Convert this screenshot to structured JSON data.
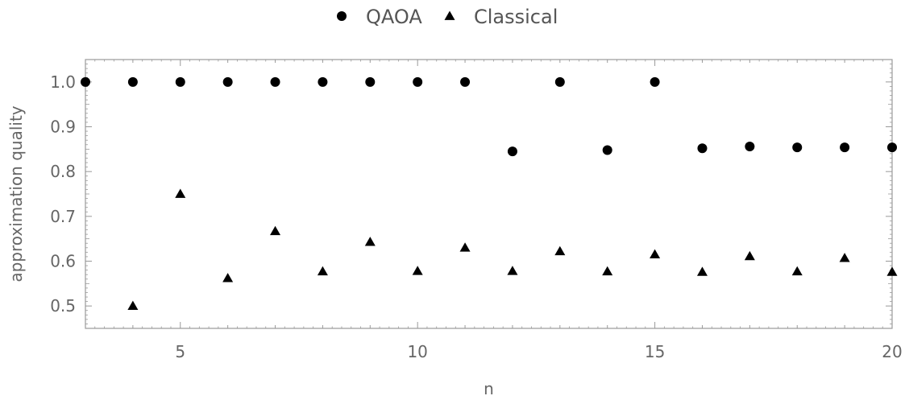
{
  "chart_data": {
    "type": "scatter",
    "xlabel": "n",
    "ylabel": "approximation quality",
    "xlim": [
      3,
      20
    ],
    "ylim": [
      0.45,
      1.05
    ],
    "xticks": [
      5,
      10,
      15,
      20
    ],
    "yticks": [
      0.5,
      0.6,
      0.7,
      0.8,
      0.9,
      1.0
    ],
    "ytick_labels": [
      "0.5",
      "0.6",
      "0.7",
      "0.8",
      "0.9",
      "1.0"
    ],
    "legend_position": "top-center",
    "series": [
      {
        "name": "QAOA",
        "marker": "circle",
        "color": "#000000",
        "points": [
          [
            3,
            1.0
          ],
          [
            4,
            1.0
          ],
          [
            5,
            1.0
          ],
          [
            6,
            1.0
          ],
          [
            7,
            1.0
          ],
          [
            8,
            1.0
          ],
          [
            9,
            1.0
          ],
          [
            10,
            1.0
          ],
          [
            11,
            1.0
          ],
          [
            12,
            0.845
          ],
          [
            13,
            1.0
          ],
          [
            14,
            0.848
          ],
          [
            15,
            1.0
          ],
          [
            16,
            0.852
          ],
          [
            17,
            0.856
          ],
          [
            18,
            0.854
          ],
          [
            19,
            0.854
          ],
          [
            20,
            0.854
          ]
        ]
      },
      {
        "name": "Classical",
        "marker": "triangle",
        "color": "#000000",
        "points": [
          [
            4,
            0.5
          ],
          [
            5,
            0.75
          ],
          [
            6,
            0.562
          ],
          [
            7,
            0.667
          ],
          [
            8,
            0.577
          ],
          [
            9,
            0.643
          ],
          [
            10,
            0.578
          ],
          [
            11,
            0.63
          ],
          [
            12,
            0.578
          ],
          [
            13,
            0.622
          ],
          [
            14,
            0.577
          ],
          [
            15,
            0.615
          ],
          [
            16,
            0.576
          ],
          [
            17,
            0.611
          ],
          [
            18,
            0.577
          ],
          [
            19,
            0.607
          ],
          [
            20,
            0.576
          ]
        ]
      }
    ]
  }
}
